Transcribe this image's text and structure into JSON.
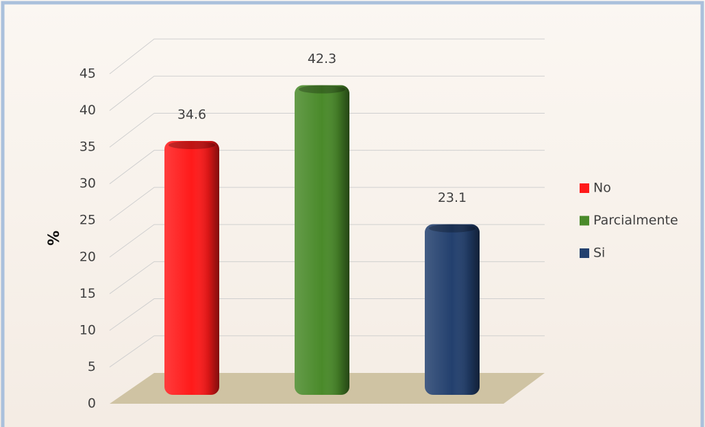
{
  "chart_data": {
    "type": "bar3d",
    "categories": [
      null
    ],
    "y_label": "%",
    "series": [
      {
        "name": "No",
        "color": "#ff1a1a",
        "values": [
          34.6
        ]
      },
      {
        "name": "Parcialmente",
        "color": "#4a8a2a",
        "values": [
          42.3
        ]
      },
      {
        "name": "Si",
        "color": "#23406e",
        "values": [
          23.1
        ]
      }
    ],
    "ylim": [
      0,
      45
    ],
    "yticks": [
      0,
      5,
      10,
      15,
      20,
      25,
      30,
      35,
      40,
      45
    ],
    "grid": true,
    "legend": "right"
  }
}
